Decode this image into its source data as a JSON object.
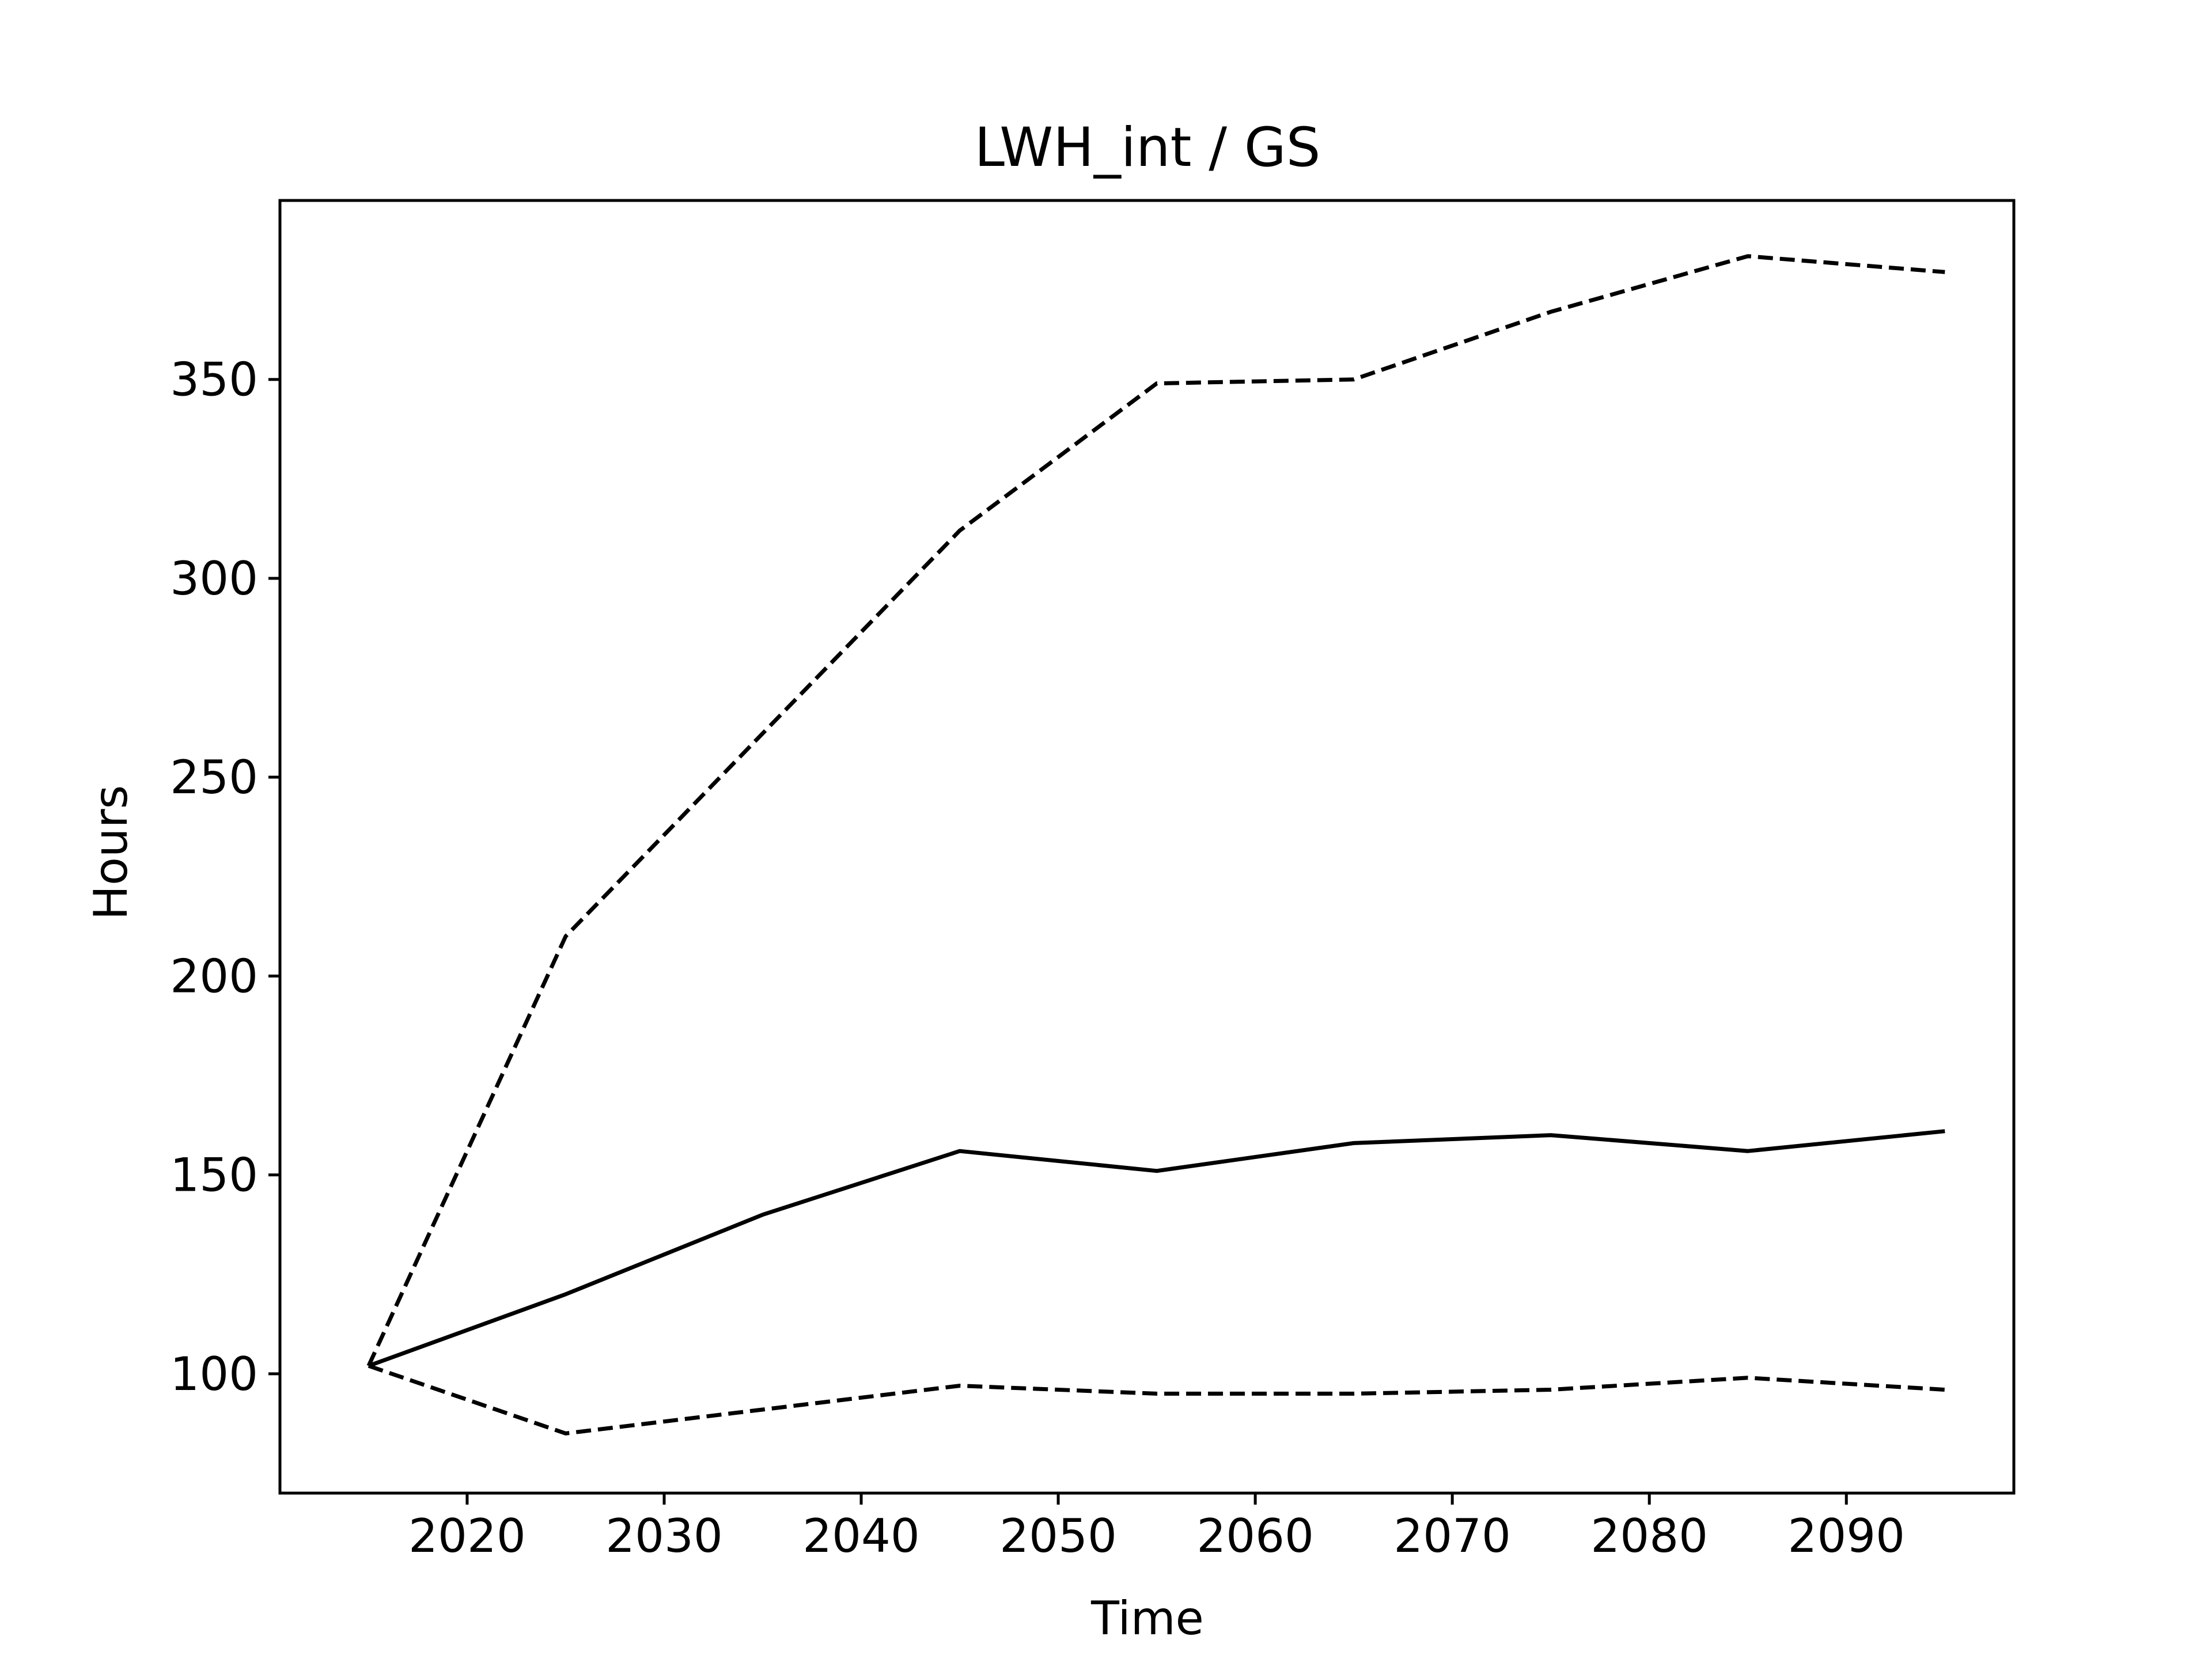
{
  "chart_data": {
    "type": "line",
    "title": "LWH_int / GS",
    "xlabel": "Time",
    "ylabel": "Hours",
    "xlim": [
      2010.5,
      2098.5
    ],
    "ylim": [
      70,
      395
    ],
    "x_ticks": [
      2020,
      2030,
      2040,
      2050,
      2060,
      2070,
      2080,
      2090
    ],
    "y_ticks": [
      100,
      150,
      200,
      250,
      300,
      350
    ],
    "grid": false,
    "legend": "none",
    "x": [
      2015,
      2025,
      2035,
      2045,
      2055,
      2065,
      2075,
      2085,
      2095
    ],
    "series": [
      {
        "style": "dashed",
        "color": "#000000",
        "values": [
          102,
          210,
          261,
          312,
          349,
          350,
          367,
          381,
          377
        ]
      },
      {
        "style": "solid",
        "color": "#000000",
        "values": [
          102,
          120,
          140,
          156,
          151,
          158,
          160,
          156,
          161
        ]
      },
      {
        "style": "dashed",
        "color": "#000000",
        "values": [
          102,
          85,
          91,
          97,
          95,
          95,
          96,
          99,
          96
        ]
      }
    ]
  }
}
